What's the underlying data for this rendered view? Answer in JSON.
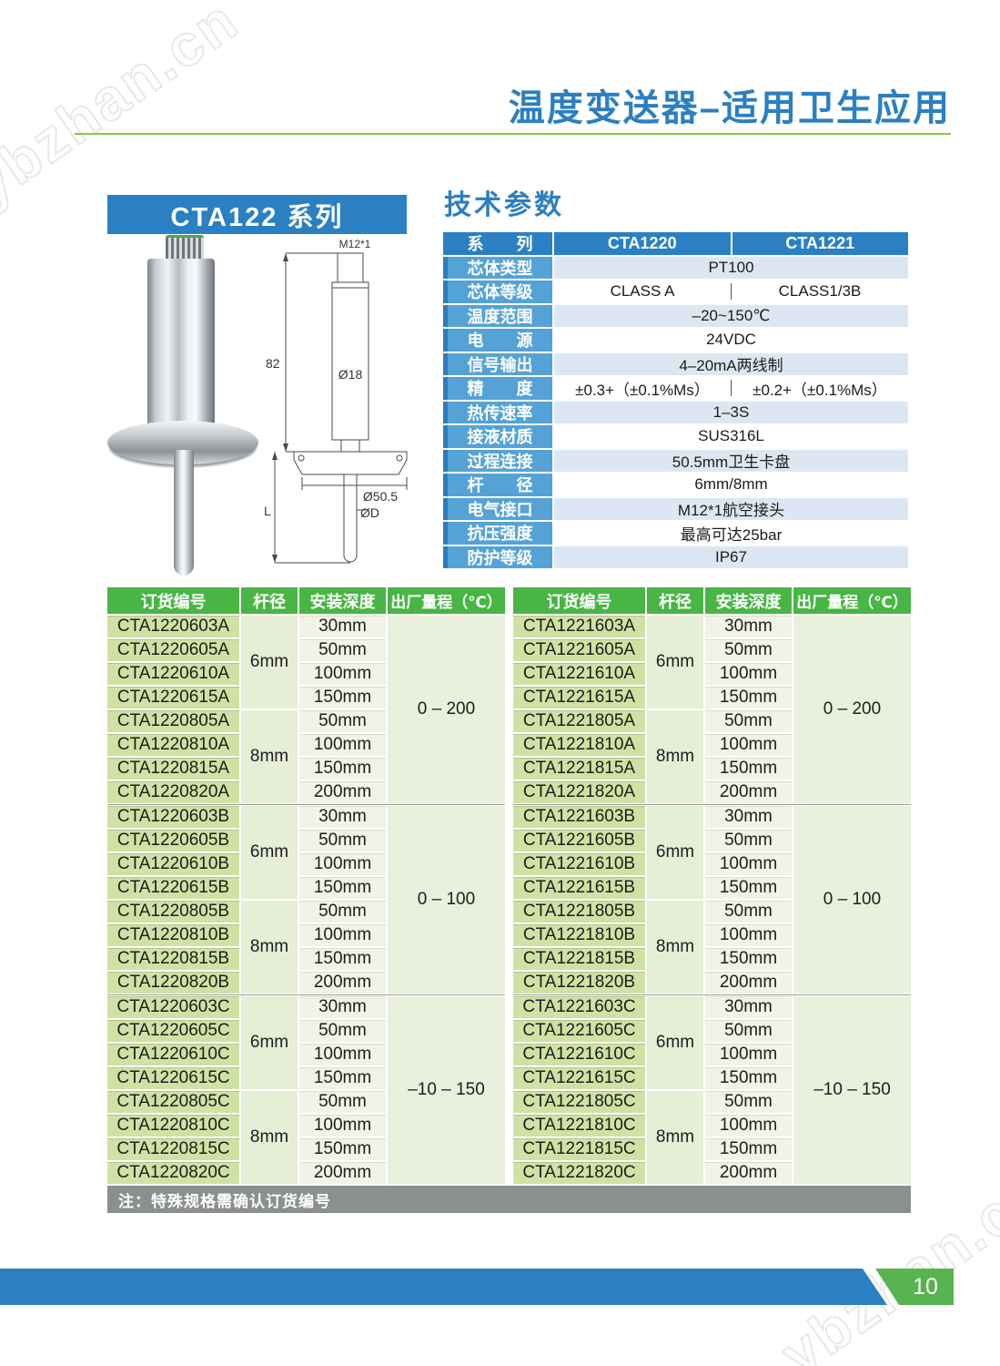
{
  "watermark": {
    "text": "ybzhan.cn"
  },
  "header": {
    "title": "温度变送器–适用卫生应用"
  },
  "series": {
    "label": "CTA122 系列"
  },
  "drawing": {
    "thread": "M12*1",
    "height": "82",
    "body_dia": "Ø18",
    "clamp_dia": "Ø50.5",
    "probe_dia": "ØD",
    "length": "L"
  },
  "spec": {
    "heading": "技术参数",
    "header_row": {
      "label": "系　　列",
      "col1": "CTA1220",
      "col2": "CTA1221"
    },
    "rows": [
      {
        "label": "芯体类型",
        "value": "PT100"
      },
      {
        "label": "芯体等级",
        "v1": "CLASS A",
        "v2": "CLASS1/3B"
      },
      {
        "label": "温度范围",
        "value": "–20~150℃"
      },
      {
        "label": "电　　源",
        "value": "24VDC"
      },
      {
        "label": "信号输出",
        "value": "4–20mA两线制"
      },
      {
        "label": "精　　度",
        "v1": "±0.3+（±0.1%Ms）",
        "v2": "±0.2+（±0.1%Ms）"
      },
      {
        "label": "热传速率",
        "value": "1–3S"
      },
      {
        "label": "接液材质",
        "value": "SUS316L"
      },
      {
        "label": "过程连接",
        "value": "50.5mm卫生卡盘"
      },
      {
        "label": "杆　　径",
        "value": "6mm/8mm"
      },
      {
        "label": "电气接口",
        "value": "M12*1航空接头"
      },
      {
        "label": "抗压强度",
        "value": "最高可达25bar"
      },
      {
        "label": "防护等级",
        "value": "IP67"
      }
    ]
  },
  "order_tables": [
    {
      "headers": [
        "订货编号",
        "杆径",
        "安装深度",
        "出厂量程（℃）"
      ],
      "groups": [
        {
          "range": "0 – 200",
          "subgroups": [
            {
              "rod": "6mm",
              "rows": [
                {
                  "code": "CTA1220603A",
                  "depth": "30mm"
                },
                {
                  "code": "CTA1220605A",
                  "depth": "50mm"
                },
                {
                  "code": "CTA1220610A",
                  "depth": "100mm"
                },
                {
                  "code": "CTA1220615A",
                  "depth": "150mm"
                }
              ]
            },
            {
              "rod": "8mm",
              "rows": [
                {
                  "code": "CTA1220805A",
                  "depth": "50mm"
                },
                {
                  "code": "CTA1220810A",
                  "depth": "100mm"
                },
                {
                  "code": "CTA1220815A",
                  "depth": "150mm"
                },
                {
                  "code": "CTA1220820A",
                  "depth": "200mm"
                }
              ]
            }
          ]
        },
        {
          "range": "0 – 100",
          "subgroups": [
            {
              "rod": "6mm",
              "rows": [
                {
                  "code": "CTA1220603B",
                  "depth": "30mm"
                },
                {
                  "code": "CTA1220605B",
                  "depth": "50mm"
                },
                {
                  "code": "CTA1220610B",
                  "depth": "100mm"
                },
                {
                  "code": "CTA1220615B",
                  "depth": "150mm"
                }
              ]
            },
            {
              "rod": "8mm",
              "rows": [
                {
                  "code": "CTA1220805B",
                  "depth": "50mm"
                },
                {
                  "code": "CTA1220810B",
                  "depth": "100mm"
                },
                {
                  "code": "CTA1220815B",
                  "depth": "150mm"
                },
                {
                  "code": "CTA1220820B",
                  "depth": "200mm"
                }
              ]
            }
          ]
        },
        {
          "range": "–10 – 150",
          "subgroups": [
            {
              "rod": "6mm",
              "rows": [
                {
                  "code": "CTA1220603C",
                  "depth": "30mm"
                },
                {
                  "code": "CTA1220605C",
                  "depth": "50mm"
                },
                {
                  "code": "CTA1220610C",
                  "depth": "100mm"
                },
                {
                  "code": "CTA1220615C",
                  "depth": "150mm"
                }
              ]
            },
            {
              "rod": "8mm",
              "rows": [
                {
                  "code": "CTA1220805C",
                  "depth": "50mm"
                },
                {
                  "code": "CTA1220810C",
                  "depth": "100mm"
                },
                {
                  "code": "CTA1220815C",
                  "depth": "150mm"
                },
                {
                  "code": "CTA1220820C",
                  "depth": "200mm"
                }
              ]
            }
          ]
        }
      ]
    },
    {
      "headers": [
        "订货编号",
        "杆径",
        "安装深度",
        "出厂量程（℃）"
      ],
      "groups": [
        {
          "range": "0 – 200",
          "subgroups": [
            {
              "rod": "6mm",
              "rows": [
                {
                  "code": "CTA1221603A",
                  "depth": "30mm"
                },
                {
                  "code": "CTA1221605A",
                  "depth": "50mm"
                },
                {
                  "code": "CTA1221610A",
                  "depth": "100mm"
                },
                {
                  "code": "CTA1221615A",
                  "depth": "150mm"
                }
              ]
            },
            {
              "rod": "8mm",
              "rows": [
                {
                  "code": "CTA1221805A",
                  "depth": "50mm"
                },
                {
                  "code": "CTA1221810A",
                  "depth": "100mm"
                },
                {
                  "code": "CTA1221815A",
                  "depth": "150mm"
                },
                {
                  "code": "CTA1221820A",
                  "depth": "200mm"
                }
              ]
            }
          ]
        },
        {
          "range": "0 – 100",
          "subgroups": [
            {
              "rod": "6mm",
              "rows": [
                {
                  "code": "CTA1221603B",
                  "depth": "30mm"
                },
                {
                  "code": "CTA1221605B",
                  "depth": "50mm"
                },
                {
                  "code": "CTA1221610B",
                  "depth": "100mm"
                },
                {
                  "code": "CTA1221615B",
                  "depth": "150mm"
                }
              ]
            },
            {
              "rod": "8mm",
              "rows": [
                {
                  "code": "CTA1221805B",
                  "depth": "50mm"
                },
                {
                  "code": "CTA1221810B",
                  "depth": "100mm"
                },
                {
                  "code": "CTA1221815B",
                  "depth": "150mm"
                },
                {
                  "code": "CTA1221820B",
                  "depth": "200mm"
                }
              ]
            }
          ]
        },
        {
          "range": "–10 – 150",
          "subgroups": [
            {
              "rod": "6mm",
              "rows": [
                {
                  "code": "CTA1221603C",
                  "depth": "30mm"
                },
                {
                  "code": "CTA1221605C",
                  "depth": "50mm"
                },
                {
                  "code": "CTA1221610C",
                  "depth": "100mm"
                },
                {
                  "code": "CTA1221615C",
                  "depth": "150mm"
                }
              ]
            },
            {
              "rod": "8mm",
              "rows": [
                {
                  "code": "CTA1221805C",
                  "depth": "50mm"
                },
                {
                  "code": "CTA1221810C",
                  "depth": "100mm"
                },
                {
                  "code": "CTA1221815C",
                  "depth": "150mm"
                },
                {
                  "code": "CTA1221820C",
                  "depth": "200mm"
                }
              ]
            }
          ]
        }
      ]
    }
  ],
  "note": "注：特殊规格需确认订货编号",
  "footer": {
    "page": "10"
  }
}
